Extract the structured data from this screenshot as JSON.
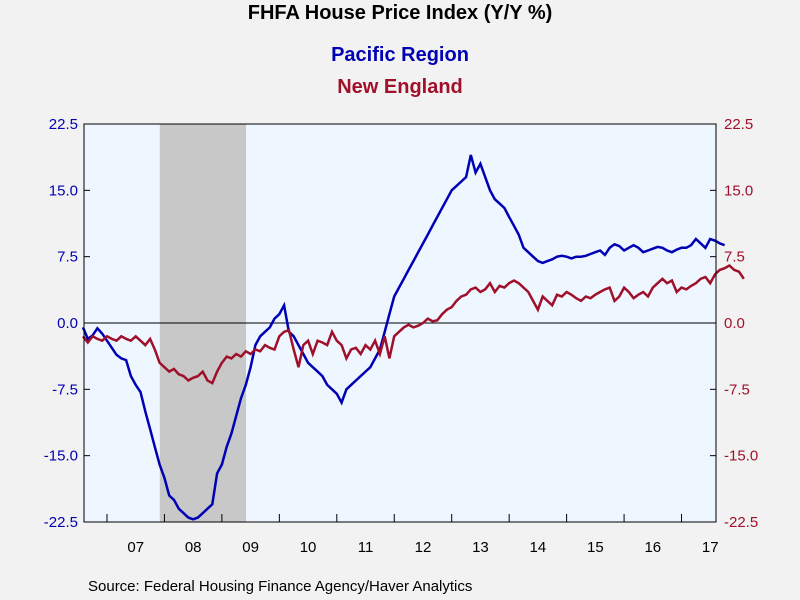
{
  "chart_data": {
    "type": "line",
    "title": "FHFA House Price Index (Y/Y %)",
    "xlabel": "",
    "ylabel": "",
    "ylim": [
      -22.5,
      22.5
    ],
    "yticks_left": [
      "22.5",
      "15.0",
      "7.5",
      "0.0",
      "-7.5",
      "-15.0",
      "-22.5"
    ],
    "yticks_right": [
      "22.5",
      "15.0",
      "7.5",
      "0.0",
      "-7.5",
      "-15.0",
      "-22.5"
    ],
    "x_year_labels": [
      "07",
      "08",
      "09",
      "10",
      "11",
      "12",
      "13",
      "14",
      "15",
      "16",
      "17"
    ],
    "x_range_years": [
      2006.6,
      2017.6
    ],
    "recession": {
      "start": 2007.92,
      "end": 2009.42
    },
    "grid": false,
    "legend": "top-center",
    "series": [
      {
        "name": "Pacific Region",
        "color": "#0000b4",
        "start_year": 2006.583,
        "step_months": 1,
        "values": [
          -0.5,
          -1.8,
          -1.4,
          -0.6,
          -1.2,
          -2.0,
          -2.8,
          -3.6,
          -4.0,
          -4.2,
          -6.0,
          -7.0,
          -7.8,
          -10.0,
          -12.0,
          -14.0,
          -16.0,
          -17.5,
          -19.5,
          -20.0,
          -21.0,
          -21.5,
          -22.0,
          -22.2,
          -22.0,
          -21.5,
          -21.0,
          -20.5,
          -17.0,
          -16.0,
          -14.0,
          -12.5,
          -10.5,
          -8.5,
          -7.0,
          -5.0,
          -2.5,
          -1.5,
          -1.0,
          -0.5,
          0.5,
          1.0,
          2.0,
          -1.0,
          -1.5,
          -2.5,
          -3.5,
          -4.5,
          -5.0,
          -5.5,
          -6.0,
          -7.0,
          -7.5,
          -8.0,
          -9.0,
          -7.5,
          -7.0,
          -6.5,
          -6.0,
          -5.5,
          -5.0,
          -4.0,
          -3.0,
          -1.0,
          1.0,
          3.0,
          4.0,
          5.0,
          6.0,
          7.0,
          8.0,
          9.0,
          10.0,
          11.0,
          12.0,
          13.0,
          14.0,
          15.0,
          15.5,
          16.0,
          16.5,
          19.0,
          17.0,
          18.0,
          16.5,
          15.0,
          14.0,
          13.5,
          13.0,
          12.0,
          11.0,
          10.0,
          8.5,
          8.0,
          7.5,
          7.0,
          6.8,
          7.0,
          7.2,
          7.5,
          7.6,
          7.5,
          7.3,
          7.5,
          7.5,
          7.6,
          7.8,
          8.0,
          8.2,
          7.7,
          8.5,
          8.9,
          8.7,
          8.2,
          8.5,
          8.8,
          8.5,
          8.0,
          8.2,
          8.4,
          8.6,
          8.5,
          8.2,
          8.0,
          8.3,
          8.5,
          8.5,
          8.8,
          9.5,
          9.0,
          8.5,
          9.5,
          9.3,
          9.0,
          8.8
        ]
      },
      {
        "name": "New England",
        "color": "#a0102a",
        "start_year": 2006.583,
        "step_months": 1,
        "values": [
          -1.5,
          -2.2,
          -1.5,
          -1.8,
          -2.0,
          -1.5,
          -1.8,
          -2.0,
          -1.5,
          -1.8,
          -2.0,
          -1.5,
          -2.0,
          -2.5,
          -1.8,
          -3.0,
          -4.5,
          -5.0,
          -5.5,
          -5.2,
          -5.8,
          -6.0,
          -6.5,
          -6.2,
          -6.0,
          -5.5,
          -6.5,
          -6.8,
          -5.5,
          -4.5,
          -3.8,
          -4.0,
          -3.5,
          -3.8,
          -3.2,
          -3.5,
          -3.0,
          -3.2,
          -2.5,
          -2.8,
          -3.0,
          -1.5,
          -1.0,
          -0.8,
          -3.0,
          -5.0,
          -2.5,
          -2.0,
          -3.5,
          -2.0,
          -2.2,
          -2.5,
          -1.0,
          -2.0,
          -2.5,
          -4.0,
          -3.0,
          -2.8,
          -3.5,
          -2.5,
          -3.0,
          -2.0,
          -3.5,
          -1.5,
          -4.0,
          -1.5,
          -1.0,
          -0.5,
          -0.2,
          -0.5,
          -0.3,
          0.0,
          0.5,
          0.2,
          0.3,
          1.0,
          1.5,
          1.8,
          2.5,
          3.0,
          3.2,
          3.8,
          4.0,
          3.5,
          3.8,
          4.5,
          3.5,
          4.2,
          4.0,
          4.5,
          4.8,
          4.5,
          4.0,
          3.5,
          2.5,
          1.5,
          3.0,
          2.5,
          2.0,
          3.2,
          3.0,
          3.5,
          3.2,
          2.8,
          2.5,
          3.0,
          2.8,
          3.2,
          3.5,
          3.8,
          4.0,
          2.5,
          3.0,
          4.0,
          3.5,
          2.8,
          3.2,
          3.5,
          3.0,
          4.0,
          4.5,
          5.0,
          4.5,
          4.8,
          3.5,
          4.0,
          3.8,
          4.2,
          4.5,
          5.0,
          5.2,
          4.5,
          5.5,
          6.0,
          6.2,
          6.5,
          6.0,
          5.8,
          5.0
        ]
      }
    ]
  },
  "source_text": "Source:  Federal Housing Finance Agency/Haver Analytics"
}
